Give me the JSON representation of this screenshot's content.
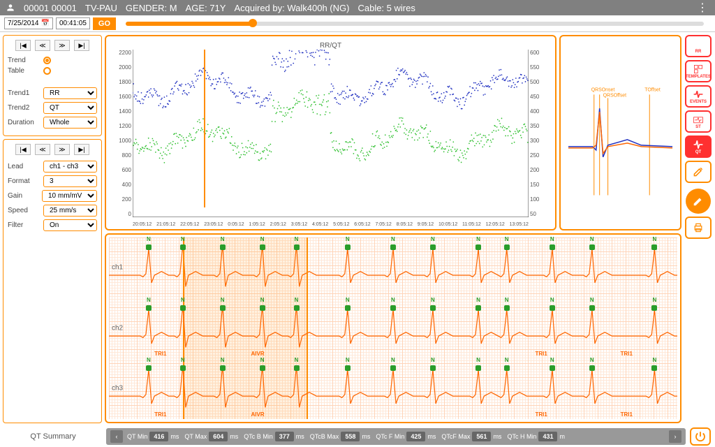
{
  "header": {
    "patient_id": "00001 00001",
    "device": "TV-PAU",
    "gender_label": "GENDER:",
    "gender": "M",
    "age_label": "AGE:",
    "age": "71Y",
    "acquired_label": "Acquired by:",
    "acquired": "Walk400h (NG)",
    "cable_label": "Cable:",
    "cable": "5 wires"
  },
  "toolbar": {
    "date": "7/25/2014",
    "time": "00:41:05",
    "go": "GO",
    "timeline_pos_pct": 22
  },
  "trend_panel": {
    "radio_trend": "Trend",
    "radio_table": "Table",
    "trend1_label": "Trend1",
    "trend1_value": "RR",
    "trend2_label": "Trend2",
    "trend2_value": "QT",
    "duration_label": "Duration",
    "duration_value": "Whole"
  },
  "lead_panel": {
    "lead_label": "Lead",
    "lead_value": "ch1 - ch3",
    "format_label": "Format",
    "format_value": "3",
    "gain_label": "Gain",
    "gain_value": "10 mm/mV",
    "speed_label": "Speed",
    "speed_value": "25 mm/s",
    "filter_label": "Filter",
    "filter_value": "On"
  },
  "chart": {
    "title": "RR/QT",
    "y_left": [
      "2200",
      "2000",
      "1800",
      "1600",
      "1400",
      "1200",
      "1000",
      "800",
      "600",
      "400",
      "200",
      "0"
    ],
    "y_right": [
      "600",
      "550",
      "500",
      "450",
      "400",
      "350",
      "300",
      "250",
      "200",
      "150",
      "100",
      "50"
    ],
    "x_ticks": [
      "20:05:12",
      "21:05:12",
      "22:05:12",
      "23:05:12",
      "0:05:12",
      "1:05:12",
      "2:05:12",
      "3:05:12",
      "4:05:12",
      "5:05:12",
      "6:05:12",
      "7:05:12",
      "8:05:12",
      "9:05:12",
      "10:05:12",
      "11:05:12",
      "12:05:12",
      "13:05:12"
    ],
    "series1_color": "#2030c0",
    "series2_color": "#30c030",
    "cursor_pct": 18,
    "axis_color": "#333333"
  },
  "template": {
    "labels": [
      "QRSOnset",
      "QRSOffset",
      "TOffset"
    ],
    "wave_color": "#2030c0",
    "wave2_color": "#ff6600",
    "marker_color": "#ff8c00"
  },
  "ecg": {
    "channels": [
      "ch1",
      "ch2",
      "ch3"
    ],
    "beat_color": "#2a9d2a",
    "wave_colors": [
      "#ff6600",
      "#404040"
    ],
    "rhythm_labels": [
      "TRI1",
      "AIVR",
      "TRI1",
      "TRI1"
    ],
    "sel_start_pct": 13,
    "sel_end_pct": 35,
    "beat_label": "N",
    "beat_positions_pct": [
      7,
      13,
      20,
      27,
      33,
      42,
      50,
      57,
      65,
      70,
      78,
      85,
      96
    ]
  },
  "tools": {
    "items": [
      "RR",
      "TEMPLATES",
      "EVENTS",
      "ST",
      "QT"
    ],
    "active_idx": 4
  },
  "footer": {
    "title": "QT Summary",
    "stats": [
      {
        "label": "QT Min",
        "value": "416",
        "unit": "ms"
      },
      {
        "label": "QT Max",
        "value": "604",
        "unit": "ms"
      },
      {
        "label": "QTc B Min",
        "value": "377",
        "unit": "ms"
      },
      {
        "label": "QTcB Max",
        "value": "558",
        "unit": "ms"
      },
      {
        "label": "QTc F Min",
        "value": "425",
        "unit": "ms"
      },
      {
        "label": "QTcF Max",
        "value": "561",
        "unit": "ms"
      },
      {
        "label": "QTc H Min",
        "value": "431",
        "unit": "m"
      }
    ]
  }
}
